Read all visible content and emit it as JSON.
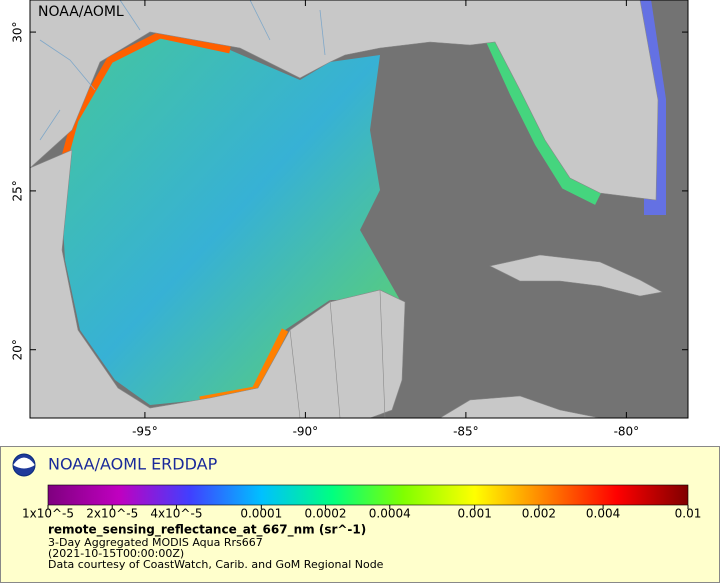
{
  "header": {
    "title": "NOAA/AOML"
  },
  "chart_data": {
    "type": "map",
    "xlim": [
      -98.58,
      -78.08
    ],
    "ylim": [
      17.85,
      31.01
    ],
    "xticks": [
      {
        "value": -95,
        "label": "-95°"
      },
      {
        "value": -90,
        "label": "-90°"
      },
      {
        "value": -85,
        "label": "-85°"
      },
      {
        "value": -80,
        "label": "-80°"
      }
    ],
    "yticks": [
      {
        "value": 20,
        "label": "20°"
      },
      {
        "value": 25,
        "label": "25°"
      },
      {
        "value": 30,
        "label": "30°"
      }
    ],
    "legend_title": "NOAA/AOML ERDDAP",
    "colorbar": {
      "scale": "log",
      "lim": [
        1e-05,
        0.01
      ],
      "ticks": [
        {
          "value": 1e-05,
          "label": "1x10^-5"
        },
        {
          "value": 2e-05,
          "label": "2x10^-5"
        },
        {
          "value": 4e-05,
          "label": "4x10^-5"
        },
        0.0001,
        0.0002,
        0.0004,
        0.001,
        0.002,
        0.004,
        0.01
      ],
      "colors": [
        "#7f007f",
        "#c000c0",
        "#4040ff",
        "#00c0ff",
        "#00ff80",
        "#80ff00",
        "#ffff00",
        "#ff8000",
        "#ff0000",
        "#800000"
      ]
    },
    "variable": "remote_sensing_reflectance_at_667_nm (sr^-1)",
    "notes": [
      "3-Day Aggregated MODIS Aqua Rrs667",
      "(2021-10-15T00:00:00Z)",
      "Data courtesy of CoastWatch, Carib. and GoM Regional Node"
    ]
  }
}
